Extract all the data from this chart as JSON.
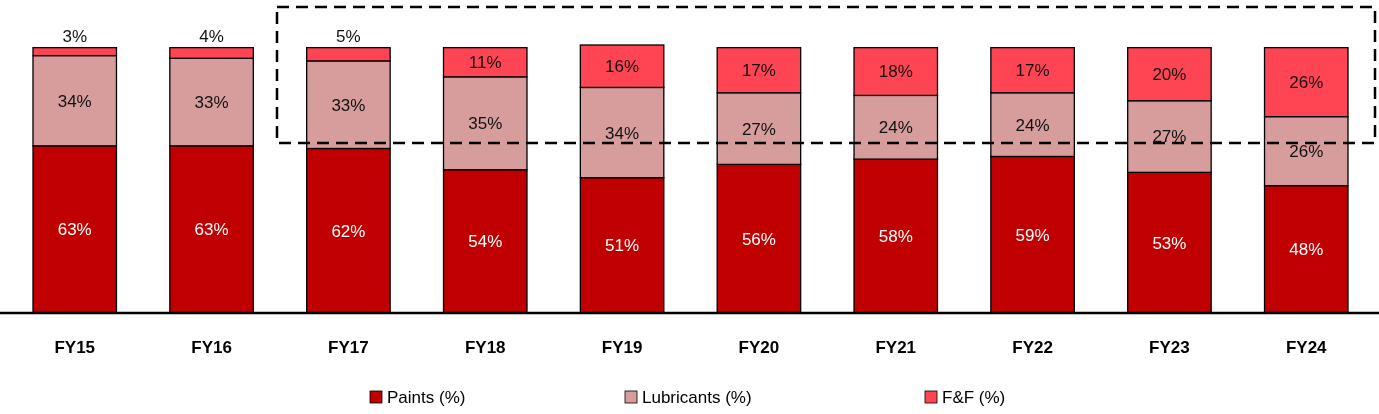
{
  "chart_data": {
    "type": "bar",
    "stacked": true,
    "categories": [
      "FY15",
      "FY16",
      "FY17",
      "FY18",
      "FY19",
      "FY20",
      "FY21",
      "FY22",
      "FY23",
      "FY24"
    ],
    "series": [
      {
        "name": "Paints (%)",
        "color": "#c00000",
        "values": [
          63,
          63,
          62,
          54,
          51,
          56,
          58,
          59,
          53,
          48
        ],
        "value_labels": [
          "63%",
          "63%",
          "62%",
          "54%",
          "51%",
          "56%",
          "58%",
          "59%",
          "53%",
          "48%"
        ]
      },
      {
        "name": "Lubricants (%)",
        "color": "#d79d9d",
        "values": [
          34,
          33,
          33,
          35,
          34,
          27,
          24,
          24,
          27,
          26
        ],
        "value_labels": [
          "34%",
          "33%",
          "33%",
          "35%",
          "34%",
          "27%",
          "24%",
          "24%",
          "27%",
          "26%"
        ]
      },
      {
        "name": "F&F (%)",
        "color": "#ff4553",
        "values": [
          3,
          4,
          5,
          11,
          16,
          17,
          18,
          17,
          20,
          26
        ],
        "value_labels": [
          "3%",
          "4%",
          "5%",
          "11%",
          "16%",
          "17%",
          "18%",
          "17%",
          "20%",
          "26%"
        ]
      }
    ],
    "legend": "bottom"
  }
}
